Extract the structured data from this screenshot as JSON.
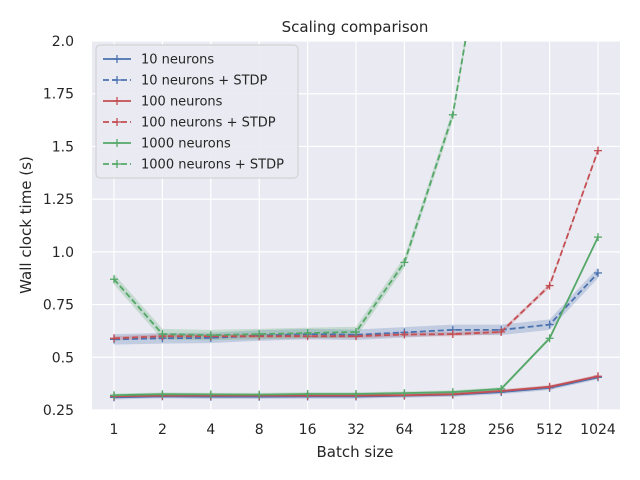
{
  "chart_data": {
    "type": "line",
    "title": "Scaling comparison",
    "xlabel": "Batch size",
    "ylabel": "Wall clock time (s)",
    "categories": [
      "1",
      "2",
      "4",
      "8",
      "16",
      "32",
      "64",
      "128",
      "256",
      "512",
      "1024"
    ],
    "yticks": [
      "0.25",
      "0.5",
      "0.75",
      "1.0",
      "1.25",
      "1.5",
      "1.75",
      "2.0"
    ],
    "ylim": [
      0.25,
      2.0
    ],
    "grid": true,
    "legend_position": "top-left",
    "background": "#eaeaf2",
    "series": [
      {
        "name": "10 neurons",
        "color": "#4c72b0",
        "dashed": false,
        "values": [
          0.31,
          0.315,
          0.313,
          0.313,
          0.314,
          0.314,
          0.318,
          0.323,
          0.335,
          0.355,
          0.405
        ],
        "band": 0.01
      },
      {
        "name": "10 neurons + STDP",
        "color": "#4c72b0",
        "dashed": true,
        "values": [
          0.585,
          0.59,
          0.592,
          0.603,
          0.61,
          0.607,
          0.618,
          0.63,
          0.63,
          0.655,
          0.9
        ],
        "band": 0.025
      },
      {
        "name": "100 neurons",
        "color": "#c44e52",
        "dashed": false,
        "values": [
          0.315,
          0.318,
          0.318,
          0.318,
          0.318,
          0.318,
          0.32,
          0.325,
          0.34,
          0.36,
          0.41
        ],
        "band": 0.008
      },
      {
        "name": "100 neurons + STDP",
        "color": "#c44e52",
        "dashed": true,
        "values": [
          0.59,
          0.6,
          0.6,
          0.6,
          0.6,
          0.6,
          0.608,
          0.61,
          0.62,
          0.84,
          1.48
        ],
        "band": 0.01
      },
      {
        "name": "1000 neurons",
        "color": "#55a868",
        "dashed": false,
        "values": [
          0.32,
          0.325,
          0.324,
          0.323,
          0.326,
          0.326,
          0.33,
          0.335,
          0.35,
          0.59,
          1.07
        ],
        "band": 0.008
      },
      {
        "name": "1000 neurons + STDP",
        "color": "#55a868",
        "dashed": true,
        "values": [
          0.87,
          0.61,
          0.605,
          0.61,
          0.615,
          0.62,
          0.95,
          1.65,
          3.0,
          null,
          null
        ],
        "band": 0.025
      }
    ]
  }
}
